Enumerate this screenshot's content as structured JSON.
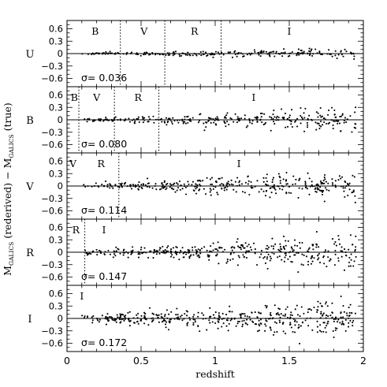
{
  "chart_data": {
    "type": "scatter",
    "x_axis": {
      "label": "redshift",
      "range": [
        0,
        2
      ],
      "ticks": [
        0,
        0.5,
        1,
        1.5,
        2
      ],
      "tick_labels": [
        "0",
        "0.5",
        "1",
        "1.5",
        "2"
      ]
    },
    "y_axis_label": {
      "parts": [
        "M",
        "GALICS",
        " (rederived) − M",
        "GALICS",
        " (true)"
      ]
    },
    "y_ticks": [
      0.6,
      0.3,
      0,
      -0.3,
      -0.6
    ],
    "y_tick_labels": [
      "0.6",
      "0.3",
      "0",
      "−0.3",
      "−0.6"
    ],
    "panels": [
      {
        "band": "U",
        "sigma_text": "σ= 0.036",
        "sigma": 0.036,
        "ylim": [
          -0.8,
          0.8
        ],
        "dividers": [
          0.36,
          0.66,
          1.04
        ],
        "region_labels": [
          {
            "text": "B",
            "z": 0.19
          },
          {
            "text": "V",
            "z": 0.52
          },
          {
            "text": "R",
            "z": 0.86
          },
          {
            "text": "I",
            "z": 1.5
          }
        ],
        "scatter": {
          "z_min": 0.1,
          "z_max": 1.95,
          "count": 230,
          "spread": 0.036,
          "grow": 1.8,
          "seed": 11
        }
      },
      {
        "band": "B",
        "sigma_text": "σ= 0.080",
        "sigma": 0.08,
        "ylim": [
          -0.8,
          0.8
        ],
        "dividers": [
          0.08,
          0.32,
          0.62
        ],
        "region_labels": [
          {
            "text": "B",
            "z": 0.05
          },
          {
            "text": "V",
            "z": 0.2
          },
          {
            "text": "R",
            "z": 0.48
          },
          {
            "text": "I",
            "z": 1.26
          }
        ],
        "scatter": {
          "z_min": 0.1,
          "z_max": 1.95,
          "count": 300,
          "spread": 0.08,
          "grow": 1.6,
          "seed": 23
        }
      },
      {
        "band": "V",
        "sigma_text": "σ= 0.114",
        "sigma": 0.114,
        "ylim": [
          -0.8,
          0.8
        ],
        "dividers": [
          0.35
        ],
        "region_labels": [
          {
            "text": "V",
            "z": 0.04
          },
          {
            "text": "R",
            "z": 0.23
          },
          {
            "text": "I",
            "z": 1.16
          }
        ],
        "scatter": {
          "z_min": 0.1,
          "z_max": 1.95,
          "count": 340,
          "spread": 0.114,
          "grow": 1.4,
          "seed": 37
        }
      },
      {
        "band": "R",
        "sigma_text": "σ= 0.147",
        "sigma": 0.147,
        "ylim": [
          -0.8,
          0.8
        ],
        "dividers": [
          0.12
        ],
        "region_labels": [
          {
            "text": "R",
            "z": 0.06
          },
          {
            "text": "I",
            "z": 0.25
          }
        ],
        "scatter": {
          "z_min": 0.1,
          "z_max": 1.95,
          "count": 380,
          "spread": 0.147,
          "grow": 1.3,
          "seed": 53
        }
      },
      {
        "band": "I",
        "sigma_text": "σ= 0.172",
        "sigma": 0.172,
        "ylim": [
          -0.8,
          0.8
        ],
        "dividers": [],
        "region_labels": [
          {
            "text": "I",
            "z": 0.1
          }
        ],
        "scatter": {
          "z_min": 0.1,
          "z_max": 1.95,
          "count": 420,
          "spread": 0.172,
          "grow": 1.25,
          "seed": 71
        }
      }
    ]
  }
}
